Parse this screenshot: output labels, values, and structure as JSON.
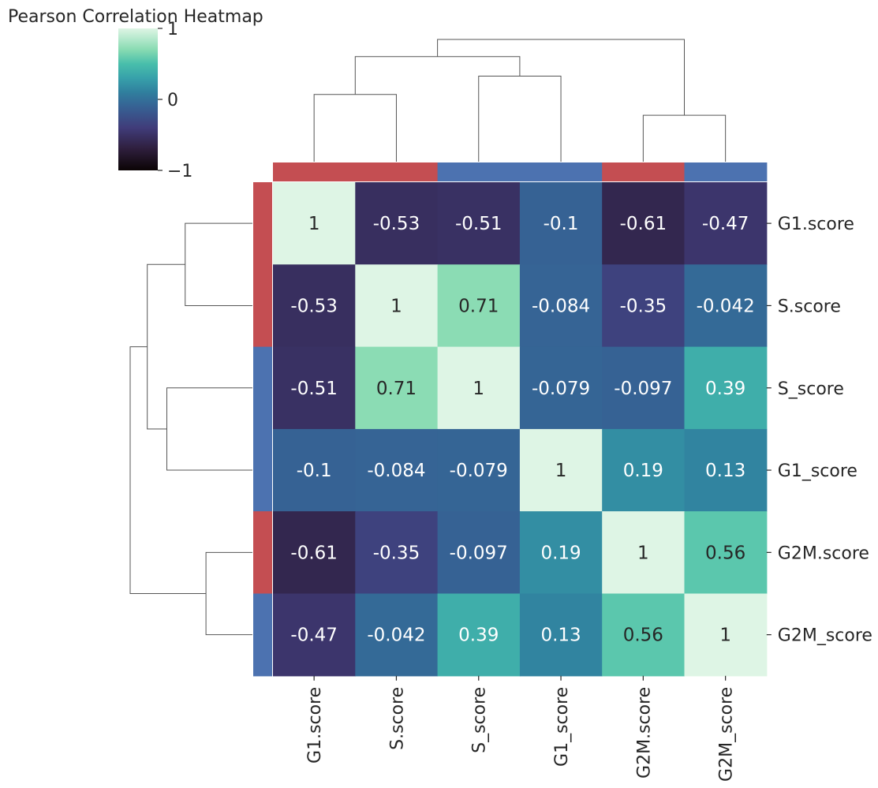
{
  "chart_data": {
    "type": "heatmap",
    "title": "Pearson Correlation Heatmap",
    "labels": [
      "G1.score",
      "S.score",
      "S_score",
      "G1_score",
      "G2M.score",
      "G2M_score"
    ],
    "matrix": [
      [
        1,
        -0.53,
        -0.51,
        -0.1,
        -0.61,
        -0.47
      ],
      [
        -0.53,
        1,
        0.71,
        -0.084,
        -0.35,
        -0.042
      ],
      [
        -0.51,
        0.71,
        1,
        -0.079,
        -0.097,
        0.39
      ],
      [
        -0.1,
        -0.084,
        -0.079,
        1,
        0.19,
        0.13
      ],
      [
        -0.61,
        -0.35,
        -0.097,
        0.19,
        1,
        0.56
      ],
      [
        -0.47,
        -0.042,
        0.39,
        0.13,
        0.56,
        1
      ]
    ],
    "cell_labels": [
      [
        "1",
        "-0.53",
        "-0.51",
        "-0.1",
        "-0.61",
        "-0.47"
      ],
      [
        "-0.53",
        "1",
        "0.71",
        "-0.084",
        "-0.35",
        "-0.042"
      ],
      [
        "-0.51",
        "0.71",
        "1",
        "-0.079",
        "-0.097",
        "0.39"
      ],
      [
        "-0.1",
        "-0.084",
        "-0.079",
        "1",
        "0.19",
        "0.13"
      ],
      [
        "-0.61",
        "-0.35",
        "-0.097",
        "0.19",
        "1",
        "0.56"
      ],
      [
        "-0.47",
        "-0.042",
        "0.39",
        "0.13",
        "0.56",
        "1"
      ]
    ],
    "value_range": [
      -1,
      1
    ],
    "colorbar": {
      "ticks": [
        1,
        0,
        -1
      ],
      "tick_labels": [
        "1",
        "0",
        "−1"
      ],
      "colormap": "mako"
    },
    "group_colors": [
      "#c44e52",
      "#c44e52",
      "#4c72b0",
      "#4c72b0",
      "#c44e52",
      "#4c72b0"
    ],
    "dendrogram_links": [
      [
        0,
        1
      ],
      [
        2,
        3
      ],
      [
        4,
        5
      ],
      [
        6,
        7
      ],
      [
        8,
        9
      ]
    ],
    "row_order": [
      0,
      1,
      2,
      3,
      4,
      5
    ],
    "col_order": [
      0,
      1,
      2,
      3,
      4,
      5
    ]
  }
}
